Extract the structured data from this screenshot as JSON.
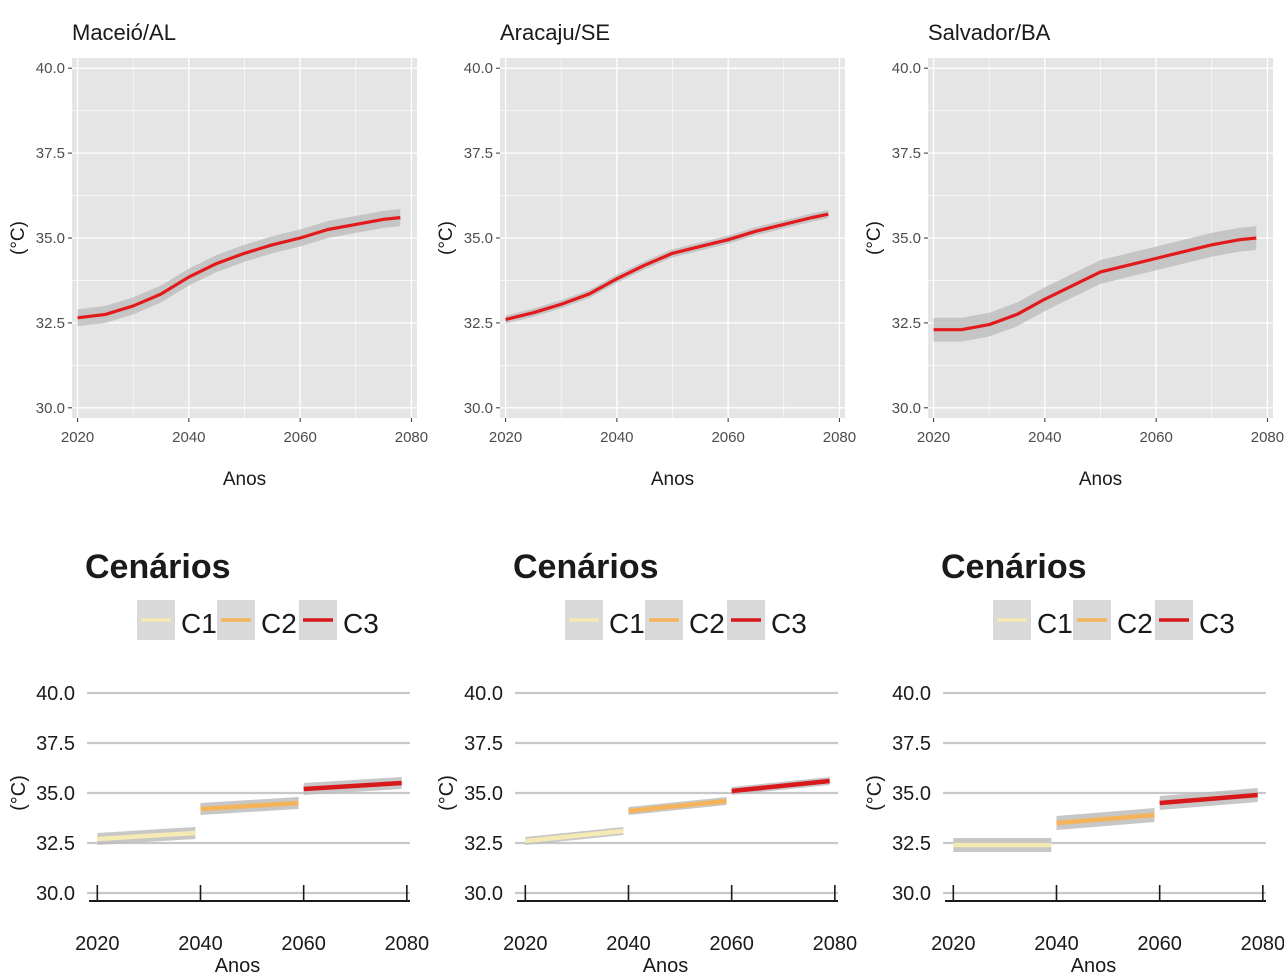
{
  "colors": {
    "panel_bg": "#e5e5e5",
    "grid": "#ffffff",
    "ribbon": "#bdbdbd",
    "c1": "#f5e9b4",
    "c2": "#f5b45a",
    "c3": "#d7191c",
    "line_top": "#e31a1c"
  },
  "chart_data": [
    {
      "type": "line",
      "title": "Maceió/AL",
      "xlabel": "Anos",
      "ylabel": "(°C)",
      "xlim": [
        2019,
        2081
      ],
      "ylim": [
        29.7,
        40.3
      ],
      "x_ticks": [
        2020,
        2040,
        2060,
        2080
      ],
      "y_ticks": [
        "30.0",
        "32.5",
        "35.0",
        "37.5",
        "40.0"
      ],
      "grid": true,
      "series": [
        {
          "x": [
            2020,
            2025,
            2030,
            2035,
            2040,
            2045,
            2050,
            2055,
            2060,
            2065,
            2070,
            2075,
            2078
          ],
          "y": [
            32.65,
            32.75,
            33.0,
            33.35,
            33.85,
            34.25,
            34.55,
            34.8,
            35.0,
            35.25,
            35.4,
            35.55,
            35.6
          ],
          "band": 0.25
        }
      ]
    },
    {
      "type": "line",
      "title": "Aracaju/SE",
      "xlabel": "Anos",
      "ylabel": "(°C)",
      "xlim": [
        2019,
        2081
      ],
      "ylim": [
        29.7,
        40.3
      ],
      "x_ticks": [
        2020,
        2040,
        2060,
        2080
      ],
      "y_ticks": [
        "30.0",
        "32.5",
        "35.0",
        "37.5",
        "40.0"
      ],
      "grid": true,
      "series": [
        {
          "x": [
            2020,
            2025,
            2030,
            2035,
            2040,
            2045,
            2050,
            2055,
            2060,
            2065,
            2070,
            2075,
            2078
          ],
          "y": [
            32.6,
            32.8,
            33.05,
            33.35,
            33.8,
            34.2,
            34.55,
            34.75,
            34.95,
            35.2,
            35.4,
            35.6,
            35.7
          ],
          "band": 0.12
        }
      ]
    },
    {
      "type": "line",
      "title": "Salvador/BA",
      "xlabel": "Anos",
      "ylabel": "(°C)",
      "xlim": [
        2019,
        2081
      ],
      "ylim": [
        29.7,
        40.3
      ],
      "x_ticks": [
        2020,
        2040,
        2060,
        2080
      ],
      "y_ticks": [
        "30.0",
        "32.5",
        "35.0",
        "37.5",
        "40.0"
      ],
      "grid": true,
      "series": [
        {
          "x": [
            2020,
            2025,
            2030,
            2035,
            2040,
            2045,
            2050,
            2055,
            2060,
            2065,
            2070,
            2075,
            2078
          ],
          "y": [
            32.3,
            32.3,
            32.45,
            32.75,
            33.2,
            33.6,
            34.0,
            34.2,
            34.4,
            34.6,
            34.8,
            34.95,
            35.0
          ],
          "band": 0.35
        }
      ]
    },
    {
      "type": "line",
      "xlabel": "Anos",
      "ylabel": "(°C)",
      "xlim": [
        2018,
        2081
      ],
      "ylim": [
        30.0,
        40.0
      ],
      "x_ticks": [
        2020,
        2040,
        2060,
        2080
      ],
      "y_ticks": [
        "30.0",
        "32.5",
        "35.0",
        "37.5",
        "40.0"
      ],
      "legend": {
        "title": "Cenários",
        "position": "top",
        "entries": [
          "C1",
          "C2",
          "C3"
        ]
      },
      "series": [
        {
          "name": "C1",
          "x": [
            2020,
            2039
          ],
          "y": [
            32.7,
            33.0
          ],
          "band": 0.3
        },
        {
          "name": "C2",
          "x": [
            2040,
            2059
          ],
          "y": [
            34.2,
            34.5
          ],
          "band": 0.3
        },
        {
          "name": "C3",
          "x": [
            2060,
            2079
          ],
          "y": [
            35.2,
            35.5
          ],
          "band": 0.3
        }
      ]
    },
    {
      "type": "line",
      "xlabel": "Anos",
      "ylabel": "(°C)",
      "xlim": [
        2018,
        2081
      ],
      "ylim": [
        30.0,
        40.0
      ],
      "x_ticks": [
        2020,
        2040,
        2060,
        2080
      ],
      "y_ticks": [
        "30.0",
        "32.5",
        "35.0",
        "37.5",
        "40.0"
      ],
      "legend": {
        "title": "Cenários",
        "position": "top",
        "entries": [
          "C1",
          "C2",
          "C3"
        ]
      },
      "series": [
        {
          "name": "C1",
          "x": [
            2020,
            2039
          ],
          "y": [
            32.6,
            33.1
          ],
          "band": 0.2
        },
        {
          "name": "C2",
          "x": [
            2040,
            2059
          ],
          "y": [
            34.1,
            34.6
          ],
          "band": 0.2
        },
        {
          "name": "C3",
          "x": [
            2060,
            2079
          ],
          "y": [
            35.1,
            35.6
          ],
          "band": 0.2
        }
      ]
    },
    {
      "type": "line",
      "xlabel": "Anos",
      "ylabel": "(°C)",
      "xlim": [
        2018,
        2081
      ],
      "ylim": [
        30.0,
        40.0
      ],
      "x_ticks": [
        2020,
        2040,
        2060,
        2080
      ],
      "y_ticks": [
        "30.0",
        "32.5",
        "35.0",
        "37.5",
        "40.0"
      ],
      "legend": {
        "title": "Cenários",
        "position": "top",
        "entries": [
          "C1",
          "C2",
          "C3"
        ]
      },
      "series": [
        {
          "name": "C1",
          "x": [
            2020,
            2039
          ],
          "y": [
            32.4,
            32.4
          ],
          "band": 0.35
        },
        {
          "name": "C2",
          "x": [
            2040,
            2059
          ],
          "y": [
            33.5,
            33.9
          ],
          "band": 0.35
        },
        {
          "name": "C3",
          "x": [
            2060,
            2079
          ],
          "y": [
            34.5,
            34.9
          ],
          "band": 0.35
        }
      ]
    }
  ]
}
